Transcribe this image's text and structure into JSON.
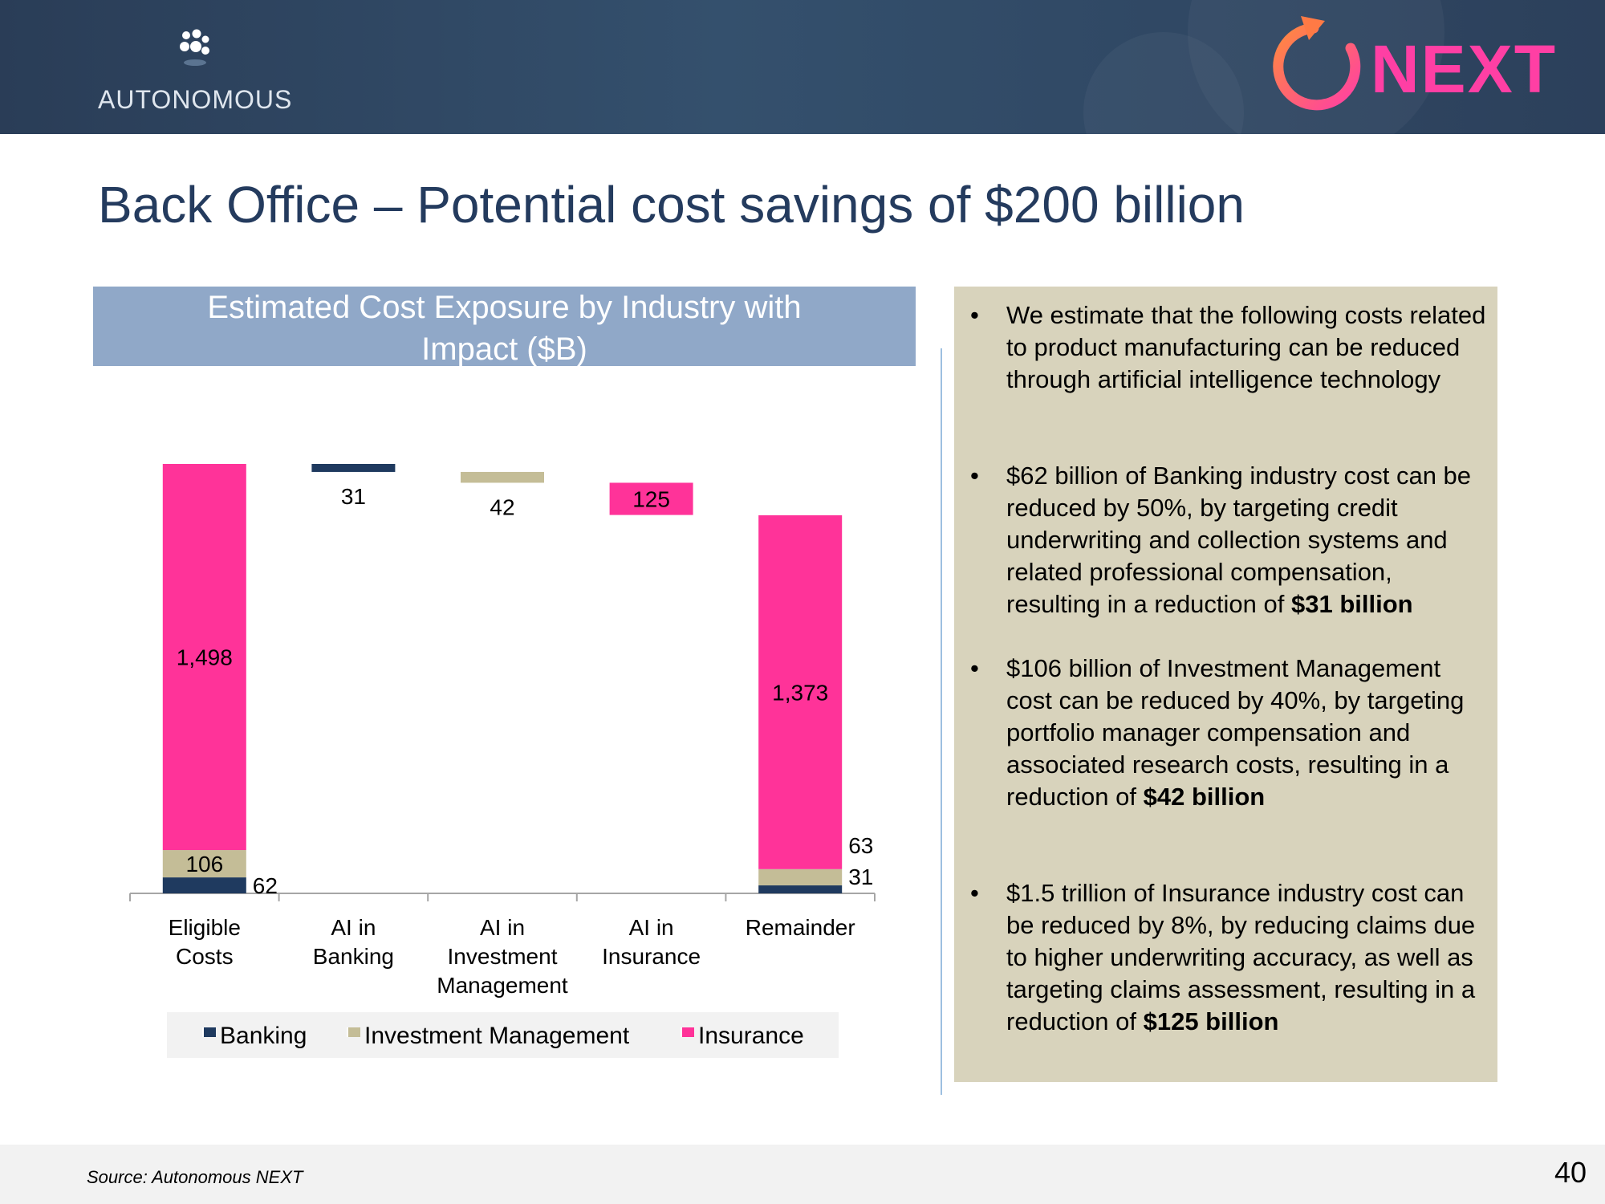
{
  "header": {
    "logo_text": "AUTONOMOUS",
    "next_logo_text": "NEXT"
  },
  "title": "Back Office – Potential cost savings of $200 billion",
  "chart_banner": {
    "line1": "Estimated Cost Exposure by Industry with",
    "line2": "Impact ($B)"
  },
  "chart_data": {
    "type": "bar",
    "subtype": "waterfall-stacked",
    "title": "Estimated Cost Exposure by Industry with Impact ($B)",
    "categories": [
      [
        "Eligible",
        "Costs"
      ],
      [
        "AI in",
        "Banking"
      ],
      [
        "AI in",
        "Investment",
        "Management"
      ],
      [
        "AI in",
        "Insurance"
      ],
      [
        "Remainder"
      ]
    ],
    "series": [
      {
        "name": "Banking",
        "color": "#1f3a5f",
        "values": [
          62,
          31,
          0,
          0,
          31
        ]
      },
      {
        "name": "Investment Management",
        "color": "#c4bd97",
        "values": [
          106,
          0,
          42,
          0,
          63
        ]
      },
      {
        "name": "Insurance",
        "color": "#ff3399",
        "values": [
          1498,
          0,
          0,
          125,
          1373
        ]
      }
    ],
    "bars": [
      {
        "category": 0,
        "segments": [
          {
            "series": "Banking",
            "start": 0,
            "end": 62,
            "label": "62",
            "label_pos": "right"
          },
          {
            "series": "Investment Management",
            "start": 62,
            "end": 168,
            "label": "106",
            "label_pos": "inside"
          },
          {
            "series": "Insurance",
            "start": 168,
            "end": 1666,
            "label": "1,498",
            "label_pos": "inside"
          }
        ]
      },
      {
        "category": 1,
        "segments": [
          {
            "series": "Banking",
            "start": 1635,
            "end": 1666,
            "label": "31",
            "label_pos": "below"
          }
        ]
      },
      {
        "category": 2,
        "segments": [
          {
            "series": "Investment Management",
            "start": 1593,
            "end": 1635,
            "label": "42",
            "label_pos": "below"
          }
        ]
      },
      {
        "category": 3,
        "segments": [
          {
            "series": "Insurance",
            "start": 1468,
            "end": 1593,
            "label": "125",
            "label_pos": "inside"
          }
        ]
      },
      {
        "category": 4,
        "segments": [
          {
            "series": "Banking",
            "start": 0,
            "end": 31,
            "label": "31",
            "label_pos": "right"
          },
          {
            "series": "Investment Management",
            "start": 31,
            "end": 94,
            "label": "63",
            "label_pos": "right-above"
          },
          {
            "series": "Insurance",
            "start": 94,
            "end": 1467,
            "label": "1,373",
            "label_pos": "inside"
          }
        ]
      }
    ],
    "ylim": [
      0,
      1666
    ],
    "xlabel": "",
    "ylabel": "",
    "legend": [
      "Banking",
      "Investment Management",
      "Insurance"
    ],
    "legend_position": "bottom"
  },
  "legend": {
    "banking": "Banking",
    "investment": "Investment Management",
    "insurance": "Insurance"
  },
  "info": {
    "bullets": [
      {
        "text": "We estimate that the following costs related to product manufacturing can be reduced through artificial intelligence technology",
        "bold": ""
      },
      {
        "text": "$62 billion of Banking industry cost can be reduced by 50%, by targeting credit underwriting and collection systems and related professional compensation, resulting in a reduction of ",
        "bold": "$31 billion"
      },
      {
        "text": "$106 billion of Investment Management cost can be reduced by 40%, by targeting portfolio manager compensation and associated research costs, resulting in a reduction of ",
        "bold": "$42 billion"
      },
      {
        "text": "$1.5 trillion of Insurance industry cost can be reduced by 8%, by reducing claims due to higher underwriting accuracy, as well as targeting claims assessment, resulting in a reduction of ",
        "bold": "$125 billion"
      }
    ]
  },
  "footer": {
    "source": "Source: Autonomous NEXT",
    "page_number": "40"
  }
}
